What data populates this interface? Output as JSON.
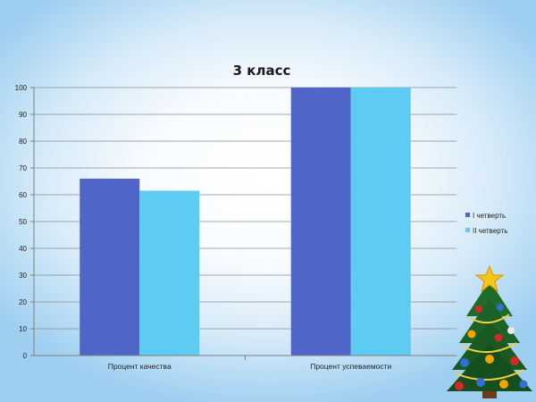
{
  "chart_data": {
    "type": "bar",
    "title": "3 класс",
    "categories": [
      "Процент  качества",
      "Процент  успеваемости"
    ],
    "series": [
      {
        "name": "I четверть",
        "values": [
          66,
          100
        ],
        "color": "#4f66c8"
      },
      {
        "name": "II четверть",
        "values": [
          61.5,
          100
        ],
        "color": "#5ecbf2"
      }
    ],
    "xlabel": "",
    "ylabel": "",
    "ylim": [
      0,
      100
    ],
    "yticks": [
      0,
      10,
      20,
      30,
      40,
      50,
      60,
      70,
      80,
      90,
      100
    ],
    "grid": true,
    "legend": "right"
  },
  "decoration": {
    "icon": "christmas-tree-icon"
  }
}
